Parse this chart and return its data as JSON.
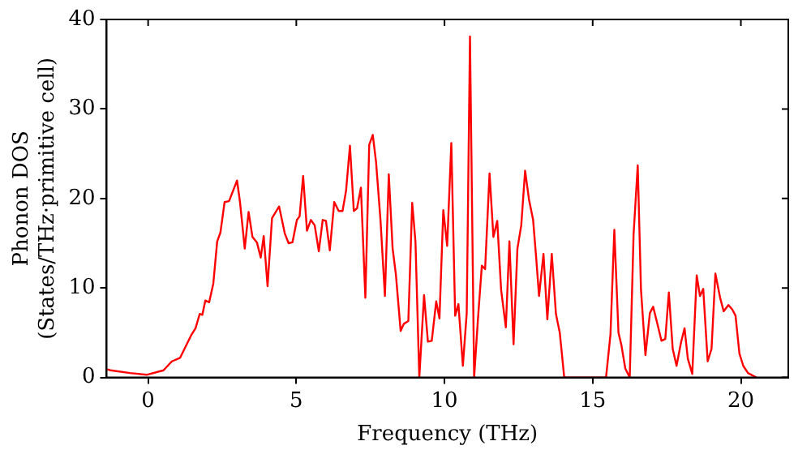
{
  "chart_data": {
    "type": "line",
    "xlabel": "Frequency (THz)",
    "ylabel": "Phonon DOS\n(States/THz·primitive cell)",
    "x": [
      -1.38,
      -1.27,
      -0.61,
      -0.05,
      0.52,
      0.8,
      1.08,
      1.45,
      1.6,
      1.74,
      1.83,
      1.93,
      2.06,
      2.2,
      2.33,
      2.44,
      2.58,
      2.73,
      3.0,
      3.1,
      3.26,
      3.39,
      3.52,
      3.67,
      3.8,
      3.9,
      4.03,
      4.18,
      4.42,
      4.61,
      4.74,
      4.87,
      5.02,
      5.11,
      5.23,
      5.36,
      5.49,
      5.62,
      5.76,
      5.89,
      6.0,
      6.13,
      6.28,
      6.43,
      6.56,
      6.68,
      6.81,
      6.94,
      7.05,
      7.18,
      7.33,
      7.46,
      7.58,
      7.69,
      7.84,
      7.99,
      8.12,
      8.25,
      8.36,
      8.52,
      8.63,
      8.78,
      8.91,
      9.02,
      9.15,
      9.31,
      9.44,
      9.57,
      9.72,
      9.83,
      9.96,
      10.09,
      10.23,
      10.36,
      10.47,
      10.62,
      10.75,
      10.86,
      11.0,
      11.13,
      11.26,
      11.37,
      11.52,
      11.65,
      11.78,
      11.91,
      12.07,
      12.19,
      12.33,
      12.46,
      12.59,
      12.72,
      12.85,
      12.99,
      13.1,
      13.19,
      13.34,
      13.47,
      13.62,
      13.76,
      13.89,
      14.04,
      15.45,
      15.6,
      15.73,
      15.87,
      15.97,
      16.1,
      16.25,
      16.38,
      16.52,
      16.63,
      16.78,
      16.93,
      17.04,
      17.19,
      17.32,
      17.45,
      17.57,
      17.7,
      17.83,
      17.98,
      18.1,
      18.21,
      18.36,
      18.51,
      18.62,
      18.73,
      18.88,
      19.01,
      19.14,
      19.3,
      19.42,
      19.58,
      19.71,
      19.82,
      19.95,
      20.08,
      20.24,
      20.52
    ],
    "series": [
      {
        "color": "#ff0000",
        "values": [
          0.9,
          0.8,
          0.5,
          0.3,
          0.8,
          1.8,
          2.2,
          4.7,
          5.5,
          7.1,
          7.0,
          8.6,
          8.4,
          10.5,
          15.2,
          16.2,
          19.6,
          19.7,
          22.0,
          19.6,
          14.4,
          18.5,
          15.7,
          15.1,
          13.4,
          15.8,
          10.2,
          17.8,
          19.1,
          16.1,
          15.0,
          15.1,
          17.6,
          18.0,
          22.5,
          16.4,
          17.6,
          17.0,
          14.1,
          17.6,
          17.5,
          14.2,
          19.6,
          18.6,
          18.6,
          20.9,
          25.9,
          18.6,
          18.9,
          21.2,
          8.9,
          26.0,
          27.1,
          24.1,
          17.6,
          9.1,
          22.7,
          14.4,
          11.5,
          5.2,
          6.0,
          6.3,
          19.5,
          15.2,
          0,
          9.2,
          4.0,
          4.1,
          8.5,
          6.6,
          18.7,
          14.7,
          26.2,
          6.9,
          8.2,
          1.3,
          7.2,
          38.1,
          0,
          6.6,
          12.5,
          12.1,
          22.8,
          15.7,
          17.5,
          9.8,
          5.6,
          15.2,
          3.7,
          14.4,
          17.0,
          23.1,
          19.9,
          17.6,
          13.1,
          9.1,
          13.8,
          6.5,
          13.8,
          7.1,
          5.0,
          0,
          0,
          4.8,
          16.5,
          5.0,
          3.6,
          1.0,
          0,
          16.0,
          23.7,
          9.8,
          2.5,
          7.2,
          7.9,
          5.9,
          4.1,
          4.3,
          9.5,
          3.2,
          1.3,
          3.9,
          5.5,
          2.1,
          0.4,
          11.4,
          9.1,
          9.9,
          1.8,
          3.2,
          11.6,
          8.9,
          7.4,
          8.1,
          7.6,
          6.9,
          2.7,
          1.3,
          0.5,
          0
        ]
      }
    ],
    "xlim": [
      -1.4,
      21.6
    ],
    "xticks": [
      0,
      5,
      10,
      15,
      20
    ],
    "ylim": [
      0,
      40
    ],
    "yticks": [
      0,
      10,
      20,
      30,
      40
    ],
    "grid": false,
    "legend": false,
    "marker": "none",
    "line_style": "solid"
  }
}
